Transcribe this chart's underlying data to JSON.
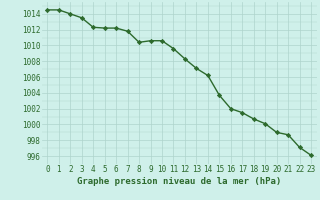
{
  "x": [
    0,
    1,
    2,
    3,
    4,
    5,
    6,
    7,
    8,
    9,
    10,
    11,
    12,
    13,
    14,
    15,
    16,
    17,
    18,
    19,
    20,
    21,
    22,
    23
  ],
  "y": [
    1014.5,
    1014.5,
    1014.0,
    1013.5,
    1012.3,
    1012.2,
    1012.2,
    1011.8,
    1010.4,
    1010.6,
    1010.6,
    1009.6,
    1008.3,
    1007.1,
    1006.2,
    1003.7,
    1002.0,
    1001.5,
    1000.7,
    1000.1,
    999.0,
    998.7,
    997.1,
    996.1
  ],
  "line_color": "#2d6a2d",
  "marker": "D",
  "marker_size": 2.2,
  "bg_color": "#cff0ea",
  "grid_color": "#aed4cc",
  "xlabel": "Graphe pression niveau de la mer (hPa)",
  "xlabel_fontsize": 6.5,
  "xlabel_color": "#2d6a2d",
  "tick_fontsize": 5.5,
  "tick_color": "#2d6a2d",
  "ylim": [
    995.0,
    1015.5
  ],
  "yticks": [
    996,
    998,
    1000,
    1002,
    1004,
    1006,
    1008,
    1010,
    1012,
    1014
  ],
  "xticks": [
    0,
    1,
    2,
    3,
    4,
    5,
    6,
    7,
    8,
    9,
    10,
    11,
    12,
    13,
    14,
    15,
    16,
    17,
    18,
    19,
    20,
    21,
    22,
    23
  ],
  "line_width": 1.0
}
